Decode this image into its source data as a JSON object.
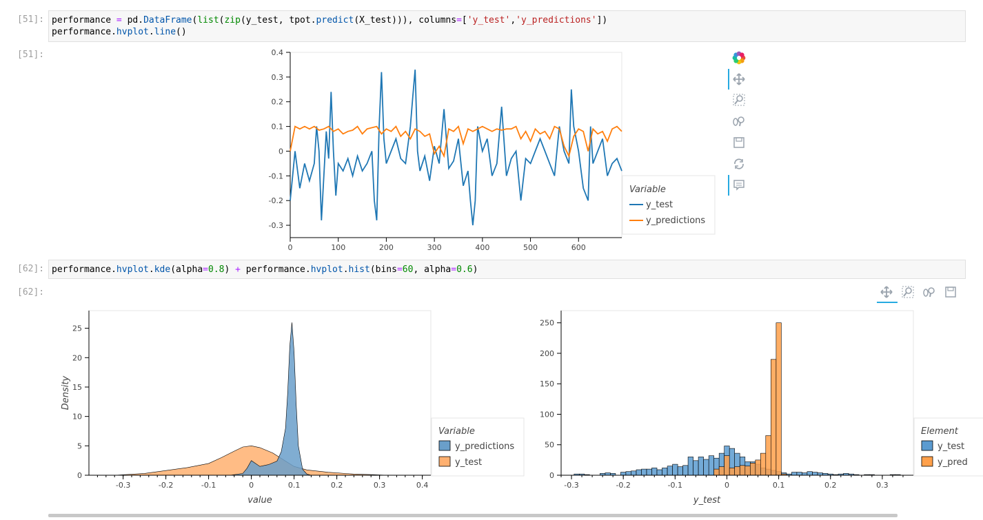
{
  "cells": [
    {
      "prompt_in": "[51]:",
      "prompt_out": "[51]:",
      "code": [
        [
          [
            "performance ",
            ""
          ],
          [
            "=",
            "k"
          ],
          [
            " pd.",
            ""
          ],
          [
            "DataFrame",
            "f"
          ],
          [
            "(",
            ""
          ],
          [
            "list",
            "n"
          ],
          [
            "(",
            ""
          ],
          [
            "zip",
            "n"
          ],
          [
            "(y_test, tpot.",
            ""
          ],
          [
            "predict",
            "f"
          ],
          [
            "(X_test))), columns",
            ""
          ],
          [
            "=",
            "k"
          ],
          [
            "[",
            ""
          ],
          [
            "'y_test'",
            "s"
          ],
          [
            ",",
            ""
          ],
          [
            "'y_predictions'",
            "s"
          ],
          [
            "])",
            ""
          ]
        ],
        [
          [
            "performance.",
            ""
          ],
          [
            "hvplot",
            "f"
          ],
          [
            ".",
            ""
          ],
          [
            "line",
            "f"
          ],
          [
            "()",
            ""
          ]
        ]
      ]
    },
    {
      "prompt_in": "[62]:",
      "prompt_out": "[62]:",
      "code": [
        [
          [
            "performance.",
            ""
          ],
          [
            "hvplot",
            "f"
          ],
          [
            ".",
            ""
          ],
          [
            "kde",
            "f"
          ],
          [
            "(alpha",
            ""
          ],
          [
            "=",
            "k"
          ],
          [
            "0.8",
            "n"
          ],
          [
            ") ",
            ""
          ],
          [
            "+",
            "k"
          ],
          [
            " performance.",
            ""
          ],
          [
            "hvplot",
            "f"
          ],
          [
            ".",
            ""
          ],
          [
            "hist",
            "f"
          ],
          [
            "(bins",
            ""
          ],
          [
            "=",
            "k"
          ],
          [
            "60",
            "n"
          ],
          [
            ", alpha",
            ""
          ],
          [
            "=",
            "k"
          ],
          [
            "0.6",
            "n"
          ],
          [
            ")",
            ""
          ]
        ]
      ]
    }
  ],
  "colors": {
    "blue": "#1f77b4",
    "orange": "#ff7f0e",
    "kde_blue": "#6a9fca",
    "kde_orange": "#ffb070",
    "hist_blue": "#5b9bd0",
    "hist_orange": "#ffa04a"
  },
  "toolbar1": [
    "bokeh-logo-icon",
    "pan-icon",
    "box-zoom-icon",
    "wheel-zoom-icon",
    "save-icon",
    "reset-icon",
    "hover-icon"
  ],
  "toolbar2": [
    "pan-icon",
    "box-zoom-icon",
    "wheel-zoom-icon",
    "save-icon"
  ],
  "chart_data": [
    {
      "type": "line",
      "ylim": [
        -0.35,
        0.4
      ],
      "xlim": [
        0,
        690
      ],
      "xticks": [
        0,
        100,
        200,
        300,
        400,
        500,
        600
      ],
      "yticks": [
        0.4,
        0.3,
        0.2,
        0.1,
        0,
        -0.1,
        -0.2,
        -0.3
      ],
      "xlabel": "",
      "ylabel": "",
      "legend": {
        "title": "Variable",
        "placement": "right",
        "entries": [
          "y_test",
          "y_predictions"
        ]
      },
      "series": [
        {
          "name": "y_test",
          "x": [
            0,
            10,
            20,
            30,
            40,
            50,
            55,
            60,
            65,
            70,
            75,
            80,
            85,
            90,
            95,
            100,
            110,
            120,
            130,
            140,
            150,
            160,
            170,
            175,
            180,
            185,
            190,
            195,
            200,
            210,
            220,
            230,
            240,
            250,
            255,
            260,
            265,
            270,
            280,
            290,
            300,
            310,
            320,
            330,
            340,
            350,
            360,
            370,
            375,
            380,
            385,
            390,
            400,
            410,
            420,
            430,
            440,
            450,
            460,
            470,
            480,
            490,
            500,
            510,
            520,
            530,
            540,
            550,
            560,
            570,
            580,
            585,
            590,
            600,
            610,
            620,
            625,
            630,
            640,
            650,
            660,
            670,
            680,
            690
          ],
          "values": [
            -0.2,
            0.0,
            -0.15,
            -0.05,
            -0.12,
            -0.05,
            0.1,
            0.0,
            -0.28,
            -0.1,
            0.08,
            -0.03,
            0.24,
            0.0,
            -0.18,
            -0.05,
            -0.08,
            -0.03,
            -0.1,
            -0.02,
            -0.08,
            -0.05,
            0.0,
            -0.2,
            -0.28,
            0.1,
            0.32,
            0.05,
            -0.05,
            0.0,
            0.05,
            -0.03,
            -0.05,
            0.1,
            0.22,
            0.33,
            0.0,
            -0.08,
            -0.02,
            -0.12,
            0.02,
            -0.05,
            0.17,
            -0.07,
            -0.04,
            0.05,
            -0.14,
            -0.08,
            -0.2,
            -0.3,
            -0.2,
            0.1,
            0.0,
            0.05,
            -0.1,
            -0.05,
            0.18,
            -0.1,
            -0.03,
            0.0,
            -0.2,
            -0.03,
            -0.05,
            0.0,
            0.05,
            0.0,
            -0.05,
            -0.1,
            0.1,
            0.0,
            -0.05,
            0.25,
            0.1,
            0.0,
            -0.15,
            -0.2,
            0.1,
            -0.05,
            0.0,
            0.05,
            -0.1,
            -0.05,
            -0.03,
            -0.08
          ]
        },
        {
          "name": "y_predictions",
          "x": [
            0,
            10,
            20,
            30,
            40,
            50,
            60,
            70,
            80,
            90,
            100,
            110,
            120,
            130,
            140,
            150,
            160,
            170,
            180,
            190,
            200,
            210,
            220,
            230,
            240,
            250,
            260,
            270,
            280,
            290,
            300,
            310,
            320,
            330,
            340,
            350,
            360,
            370,
            380,
            390,
            400,
            410,
            420,
            430,
            440,
            450,
            460,
            470,
            480,
            490,
            500,
            510,
            520,
            530,
            540,
            550,
            560,
            570,
            580,
            590,
            600,
            610,
            620,
            630,
            640,
            650,
            660,
            670,
            680,
            690
          ],
          "values": [
            0.0,
            0.1,
            0.09,
            0.1,
            0.09,
            0.1,
            0.085,
            0.09,
            0.1,
            0.08,
            0.09,
            0.07,
            0.08,
            0.085,
            0.1,
            0.07,
            0.09,
            0.095,
            0.1,
            0.07,
            0.09,
            0.08,
            0.1,
            0.06,
            0.08,
            0.05,
            0.09,
            0.08,
            0.06,
            0.07,
            -0.01,
            0.02,
            -0.02,
            0.09,
            0.08,
            0.1,
            0.03,
            0.09,
            0.08,
            0.09,
            0.1,
            0.09,
            0.08,
            0.09,
            0.085,
            0.09,
            0.09,
            0.1,
            0.05,
            0.08,
            0.04,
            0.09,
            0.07,
            0.08,
            0.05,
            0.1,
            0.09,
            0.02,
            -0.02,
            0.06,
            0.09,
            0.08,
            0.0,
            0.09,
            0.07,
            0.08,
            0.04,
            0.09,
            0.1,
            0.08
          ]
        }
      ]
    },
    {
      "type": "area",
      "xlabel": "value",
      "ylabel": "Density",
      "xlim": [
        -0.38,
        0.42
      ],
      "ylim": [
        0,
        28
      ],
      "xticks": [
        -0.3,
        -0.2,
        -0.1,
        0,
        0.1,
        0.2,
        0.3,
        0.4
      ],
      "yticks": [
        0,
        5,
        10,
        15,
        20,
        25
      ],
      "legend": {
        "title": "Variable",
        "placement": "right",
        "entries": [
          "y_predictions",
          "y_test"
        ]
      },
      "series": [
        {
          "name": "y_predictions",
          "x": [
            -0.32,
            -0.05,
            -0.02,
            -0.01,
            0.0,
            0.02,
            0.04,
            0.06,
            0.07,
            0.08,
            0.085,
            0.09,
            0.095,
            0.1,
            0.105,
            0.11,
            0.12,
            0.13,
            0.14
          ],
          "values": [
            0,
            0,
            0.3,
            1.2,
            2.5,
            1.5,
            1.8,
            2.4,
            4,
            8,
            14,
            22,
            26,
            21,
            12,
            5,
            1,
            0.2,
            0
          ]
        },
        {
          "name": "y_test",
          "x": [
            -0.32,
            -0.25,
            -0.2,
            -0.15,
            -0.1,
            -0.07,
            -0.04,
            -0.02,
            0.0,
            0.02,
            0.05,
            0.08,
            0.1,
            0.13,
            0.18,
            0.24,
            0.28,
            0.32
          ],
          "values": [
            0,
            0.3,
            0.8,
            1.3,
            2.0,
            3.0,
            4.1,
            4.8,
            5.0,
            4.7,
            3.8,
            2.4,
            1.5,
            0.9,
            0.5,
            0.2,
            0.1,
            0
          ]
        }
      ]
    },
    {
      "type": "bar",
      "xlabel": "y_test",
      "ylabel": "",
      "xlim": [
        -0.32,
        0.36
      ],
      "ylim": [
        0,
        270
      ],
      "xticks": [
        -0.3,
        -0.2,
        -0.1,
        0,
        0.1,
        0.2,
        0.3
      ],
      "yticks": [
        0,
        50,
        100,
        150,
        200,
        250
      ],
      "legend": {
        "title": "Element",
        "placement": "right",
        "entries": [
          "y_test",
          "y_pred"
        ]
      },
      "bin_width": 0.01,
      "series": [
        {
          "name": "y_test",
          "x": [
            -0.29,
            -0.28,
            -0.27,
            -0.24,
            -0.23,
            -0.22,
            -0.2,
            -0.19,
            -0.18,
            -0.17,
            -0.16,
            -0.15,
            -0.14,
            -0.13,
            -0.12,
            -0.11,
            -0.1,
            -0.09,
            -0.08,
            -0.07,
            -0.06,
            -0.05,
            -0.04,
            -0.03,
            -0.02,
            -0.01,
            0.0,
            0.01,
            0.02,
            0.03,
            0.04,
            0.05,
            0.06,
            0.07,
            0.08,
            0.09,
            0.1,
            0.11,
            0.12,
            0.13,
            0.14,
            0.15,
            0.16,
            0.17,
            0.18,
            0.19,
            0.2,
            0.21,
            0.22,
            0.23,
            0.24,
            0.25,
            0.27,
            0.28,
            0.32,
            0.33
          ],
          "values": [
            2,
            2,
            1,
            3,
            4,
            3,
            5,
            6,
            7,
            9,
            10,
            10,
            12,
            9,
            12,
            15,
            18,
            14,
            16,
            30,
            24,
            30,
            26,
            32,
            28,
            36,
            48,
            44,
            36,
            30,
            22,
            22,
            18,
            12,
            10,
            8,
            6,
            4,
            2,
            5,
            5,
            4,
            6,
            5,
            4,
            3,
            2,
            1,
            2,
            3,
            2,
            1,
            1,
            1,
            1,
            1
          ]
        },
        {
          "name": "y_pred",
          "x": [
            -0.02,
            -0.01,
            0.0,
            0.01,
            0.02,
            0.03,
            0.04,
            0.05,
            0.06,
            0.07,
            0.08,
            0.09,
            0.1,
            0.11
          ],
          "values": [
            10,
            14,
            32,
            12,
            14,
            16,
            15,
            20,
            25,
            36,
            65,
            190,
            250,
            2
          ]
        }
      ]
    }
  ]
}
